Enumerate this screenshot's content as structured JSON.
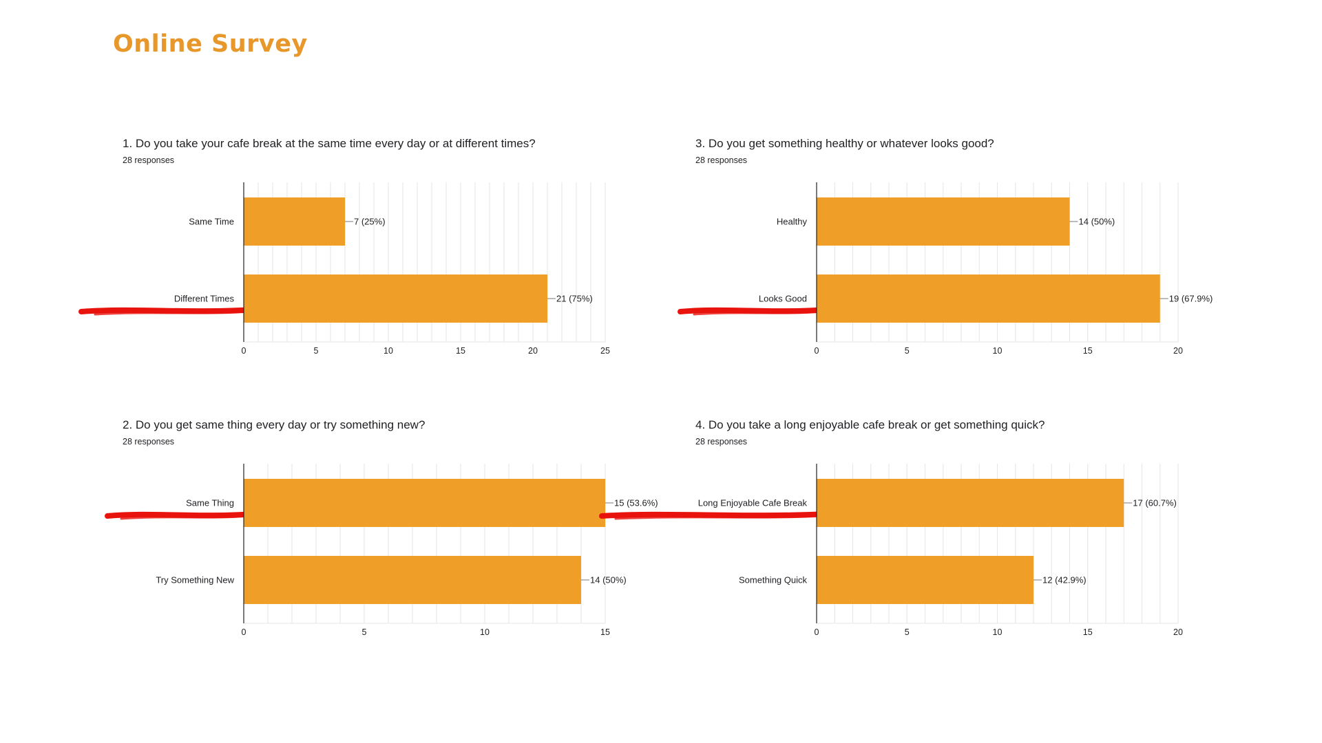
{
  "page": {
    "title": "Online Survey"
  },
  "colors": {
    "title": "#e8972a",
    "bar": "#ef9e27",
    "highlight": "#e8130c",
    "grid": "#e6e6e6",
    "axis": "#202124"
  },
  "chart_data": [
    {
      "type": "bar",
      "orientation": "horizontal",
      "title": "1. Do you take your cafe break at the same time every day or at different times?",
      "subtitle": "28 responses",
      "categories": [
        "Same Time",
        "Different Times"
      ],
      "values": [
        7,
        21
      ],
      "labels": [
        "7 (25%)",
        "21 (75%)"
      ],
      "xlim": [
        0,
        25
      ],
      "xticks": [
        0,
        5,
        10,
        15,
        20,
        25
      ],
      "highlighted": "Different Times",
      "grid": true
    },
    {
      "type": "bar",
      "orientation": "horizontal",
      "title": "3. Do you get something healthy or whatever looks good?",
      "subtitle": "28 responses",
      "categories": [
        "Healthy",
        "Looks Good"
      ],
      "values": [
        14,
        19
      ],
      "labels": [
        "14 (50%)",
        "19 (67.9%)"
      ],
      "xlim": [
        0,
        20
      ],
      "xticks": [
        0,
        5,
        10,
        15,
        20
      ],
      "highlighted": "Looks Good",
      "grid": true
    },
    {
      "type": "bar",
      "orientation": "horizontal",
      "title": "2. Do you get same thing every day or try something new?",
      "subtitle": "28 responses",
      "categories": [
        "Same Thing",
        "Try Something New"
      ],
      "values": [
        15,
        14
      ],
      "labels": [
        "15 (53.6%)",
        "14 (50%)"
      ],
      "xlim": [
        0,
        15
      ],
      "xticks": [
        0,
        5,
        10,
        15
      ],
      "highlighted": "Same Thing",
      "grid": true
    },
    {
      "type": "bar",
      "orientation": "horizontal",
      "title": "4. Do you take a long enjoyable cafe break or get something quick?",
      "subtitle": "28 responses",
      "categories": [
        "Long Enjoyable Cafe Break",
        "Something Quick"
      ],
      "values": [
        17,
        12
      ],
      "labels": [
        "17 (60.7%)",
        "12 (42.9%)"
      ],
      "xlim": [
        0,
        20
      ],
      "xticks": [
        0,
        5,
        10,
        15,
        20
      ],
      "highlighted": "Long Enjoyable Cafe Break",
      "grid": true
    }
  ]
}
